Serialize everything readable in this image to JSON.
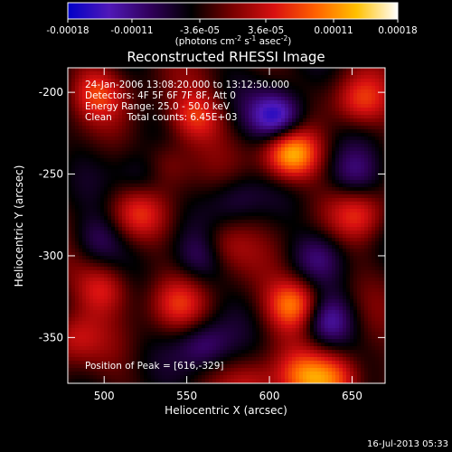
{
  "colorbar": {
    "ticks": [
      "-0.00018",
      "-0.00011",
      "-3.6e-05",
      "3.6e-05",
      "0.00011",
      "0.00018"
    ],
    "tick_values": [
      -0.00018,
      -0.00011,
      -3.6e-05,
      3.6e-05,
      0.00011,
      0.00018
    ],
    "range": [
      -0.00018,
      0.00018
    ],
    "units_text": "(photons cm",
    "units_sup1": "-2",
    "units_mid": " s",
    "units_sup2": "-1",
    "units_mid2": " asec",
    "units_sup3": "-2",
    "units_end": ")",
    "colors": [
      "#0000c8",
      "#5018b8",
      "#30005a",
      "#000000",
      "#7a0000",
      "#d81010",
      "#ff6000",
      "#ffc000",
      "#ffffff"
    ]
  },
  "chart_data": {
    "type": "heatmap",
    "title": "Reconstructed RHESSI Image",
    "xlabel": "Heliocentric X (arcsec)",
    "ylabel": "Heliocentric Y (arcsec)",
    "xlim": [
      478,
      670
    ],
    "ylim": [
      -378,
      -185
    ],
    "xticks": [
      500,
      550,
      600,
      650
    ],
    "yticks": [
      -200,
      -250,
      -300,
      -350
    ],
    "peak": {
      "x": 616,
      "y": -329
    },
    "sources": [
      {
        "x": 613,
        "y": -238,
        "v": 1.0
      },
      {
        "x": 615,
        "y": -330,
        "v": 0.85
      },
      {
        "x": 555,
        "y": -215,
        "v": 0.55
      },
      {
        "x": 535,
        "y": -245,
        "v": 0.45
      },
      {
        "x": 495,
        "y": -200,
        "v": 0.5
      },
      {
        "x": 500,
        "y": -320,
        "v": 0.5
      },
      {
        "x": 480,
        "y": -350,
        "v": 0.4
      },
      {
        "x": 570,
        "y": -295,
        "v": 0.45
      },
      {
        "x": 520,
        "y": -275,
        "v": 0.4
      },
      {
        "x": 655,
        "y": -205,
        "v": 0.5
      },
      {
        "x": 655,
        "y": -275,
        "v": 0.45
      },
      {
        "x": 640,
        "y": -375,
        "v": 0.7
      },
      {
        "x": 620,
        "y": -375,
        "v": 0.6
      },
      {
        "x": 545,
        "y": -330,
        "v": 0.4
      },
      {
        "x": 590,
        "y": -380,
        "v": 0.35
      },
      {
        "x": 605,
        "y": -215,
        "v": -0.9
      },
      {
        "x": 635,
        "y": -340,
        "v": -0.6
      },
      {
        "x": 525,
        "y": -250,
        "v": -0.45
      },
      {
        "x": 560,
        "y": -300,
        "v": -0.45
      },
      {
        "x": 580,
        "y": -265,
        "v": -0.3
      },
      {
        "x": 560,
        "y": -355,
        "v": -0.45
      },
      {
        "x": 630,
        "y": -300,
        "v": -0.35
      },
      {
        "x": 495,
        "y": -290,
        "v": -0.35
      },
      {
        "x": 650,
        "y": -250,
        "v": -0.35
      }
    ],
    "annotations": [
      "24-Jan-2006 13:08:20.000 to 13:12:50.000",
      "Detectors: 4F 5F 6F 7F 8F, Att 0",
      "Energy Range: 25.0 - 50.0 keV",
      "Clean     Total counts: 6.45E+03"
    ],
    "peak_label": "Position of Peak = [616,-329]"
  },
  "footer": {
    "timestamp": "16-Jul-2013 05:33"
  }
}
